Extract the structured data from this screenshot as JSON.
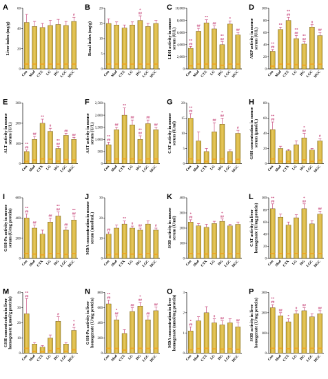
{
  "categories": [
    "Con",
    "Mod",
    "CTX",
    "LG",
    "HG",
    "LGC",
    "HGC"
  ],
  "colors": {
    "bar": "#c9a832",
    "bar_light": "#e8c95e",
    "error": "#c0306a",
    "stripe": "#f0a01e"
  },
  "chart_data": [
    {
      "type": "bar",
      "panel": "A",
      "ylabel": "Liver index (mg/g)",
      "ylim": [
        0,
        60
      ],
      "ticks": [
        0,
        20,
        40,
        60
      ],
      "values": [
        46,
        42,
        41,
        43,
        44,
        43,
        47
      ],
      "errors": [
        8,
        5,
        4,
        5,
        5,
        4,
        4
      ],
      "annotations": [
        "",
        "",
        "",
        "",
        "",
        "",
        "#"
      ]
    },
    {
      "type": "bar",
      "panel": "B",
      "ylabel": "Renal index (mg/g)",
      "ylim": [
        0,
        20
      ],
      "ticks": [
        0,
        5,
        10,
        15,
        20
      ],
      "values": [
        15,
        14.5,
        13.5,
        14.5,
        16,
        14,
        15
      ],
      "errors": [
        1.5,
        1,
        1,
        1,
        1.5,
        1,
        1
      ],
      "annotations": [
        "",
        "",
        "",
        "",
        "*\n##",
        "",
        ""
      ]
    },
    {
      "type": "bar",
      "panel": "C",
      "ylabel": "LDH activity in mouse serum (U/L)",
      "ylim": [
        0,
        10000
      ],
      "ticks": [
        0,
        2000,
        4000,
        6000,
        8000,
        10000
      ],
      "values": [
        3400,
        6200,
        7600,
        6600,
        4000,
        7400,
        5600
      ],
      "errors": [
        300,
        500,
        500,
        500,
        500,
        500,
        400
      ],
      "annotations": [
        "**\n##",
        "##",
        "**",
        "##",
        "**\n##",
        "*",
        "##"
      ]
    },
    {
      "type": "bar",
      "panel": "D",
      "ylabel": "AKP activity in mouse serum (U/L)",
      "ylim": [
        0,
        100
      ],
      "ticks": [
        0,
        20,
        40,
        60,
        80,
        100
      ],
      "values": [
        29,
        65,
        80,
        50,
        41,
        69,
        55
      ],
      "errors": [
        3,
        4,
        5,
        5,
        4,
        4,
        5
      ],
      "annotations": [
        "**\n##",
        "**",
        "**\n##",
        "**\n##",
        "**\n##",
        "#",
        "##"
      ]
    },
    {
      "type": "bar",
      "panel": "E",
      "ylabel": "ALT activity in mouse serum (U/L)",
      "ylim": [
        0,
        300
      ],
      "ticks": [
        0,
        100,
        200,
        300
      ],
      "values": [
        60,
        120,
        200,
        160,
        75,
        140,
        120
      ],
      "errors": [
        8,
        15,
        20,
        15,
        10,
        10,
        10
      ],
      "annotations": [
        "**\n##",
        "##",
        "**",
        "#",
        "**\n##",
        "##",
        "##"
      ]
    },
    {
      "type": "bar",
      "panel": "F",
      "ylabel": "AST activity in mouse serum (U/L)",
      "ylim": [
        0,
        2500
      ],
      "ticks": [
        0,
        500,
        1000,
        1500,
        2000,
        2500
      ],
      "values": [
        780,
        1400,
        2000,
        1600,
        1000,
        1650,
        1400
      ],
      "errors": [
        100,
        100,
        300,
        200,
        150,
        150,
        100
      ],
      "annotations": [
        "**\n##",
        "##",
        "**",
        "##",
        "**\n##",
        "##",
        "##"
      ]
    },
    {
      "type": "bar",
      "panel": "G",
      "ylabel": "CAT activity in mouse serum (U/ml)",
      "ylim": [
        0,
        20
      ],
      "ticks": [
        0,
        5,
        10,
        15,
        20
      ],
      "values": [
        15,
        7.5,
        4,
        10.5,
        13,
        4,
        10
      ],
      "errors": [
        1.5,
        3,
        1,
        3,
        2,
        0.5,
        1
      ],
      "annotations": [
        "**\n##",
        "",
        "",
        "##",
        "*\n##",
        "",
        "#"
      ]
    },
    {
      "type": "bar",
      "panel": "H",
      "ylabel": "GSH concentration in mouse serum (μmol/L)",
      "ylim": [
        0,
        80
      ],
      "ticks": [
        0,
        20,
        40,
        60,
        80
      ],
      "values": [
        45,
        20,
        17,
        25,
        34,
        18,
        30
      ],
      "errors": [
        10,
        3,
        2,
        5,
        6,
        2,
        3
      ],
      "annotations": [
        "**\n##",
        "",
        "",
        "",
        "*\n##",
        "",
        "#"
      ]
    },
    {
      "type": "bar",
      "panel": "I",
      "ylabel": "GSH-Px activity in mouse serum (U/mg protein)",
      "ylim": [
        0,
        600
      ],
      "ticks": [
        0,
        200,
        400,
        600
      ],
      "values": [
        400,
        300,
        240,
        360,
        420,
        280,
        380
      ],
      "errors": [
        40,
        30,
        40,
        40,
        40,
        30,
        40
      ],
      "annotations": [
        "**\n##",
        "##",
        "",
        "##",
        "**\n##",
        "##",
        "**\n##"
      ]
    },
    {
      "type": "bar",
      "panel": "J",
      "ylabel": "MDA concentration in mouse serum (nmol/mL)",
      "ylim": [
        0,
        30
      ],
      "ticks": [
        0,
        10,
        20,
        30
      ],
      "values": [
        12,
        15,
        17,
        15,
        14,
        17,
        14
      ],
      "errors": [
        1,
        1.5,
        1.5,
        1,
        1,
        1.5,
        1
      ],
      "annotations": [
        "##",
        "",
        "**",
        "#",
        "##",
        "",
        "#"
      ]
    },
    {
      "type": "bar",
      "panel": "K",
      "ylabel": "SOD activity in mouse serum (U/ml)",
      "ylim": [
        0,
        400
      ],
      "ticks": [
        0,
        100,
        200,
        300,
        400
      ],
      "values": [
        240,
        215,
        205,
        230,
        245,
        215,
        225
      ],
      "errors": [
        15,
        15,
        20,
        15,
        15,
        10,
        15
      ],
      "annotations": [
        "*\n##",
        "",
        "",
        "",
        "*\n##",
        "",
        ""
      ]
    },
    {
      "type": "bar",
      "panel": "L",
      "ylabel": "CAT activity in liver homogenate (U/mg protein)",
      "ylim": [
        0,
        100
      ],
      "ticks": [
        0,
        20,
        40,
        60,
        80,
        100
      ],
      "values": [
        82,
        68,
        55,
        67,
        82,
        57,
        73
      ],
      "errors": [
        8,
        5,
        5,
        5,
        8,
        5,
        5
      ],
      "annotations": [
        "**\n##",
        "",
        "",
        "",
        "*\n##",
        "",
        "##"
      ]
    },
    {
      "type": "bar",
      "panel": "M",
      "ylabel": "GSH concentration in liver homogenate (μmol/g protein)",
      "ylim": [
        0,
        40
      ],
      "ticks": [
        0,
        10,
        20,
        30,
        40
      ],
      "values": [
        26,
        6,
        4,
        10,
        21,
        6,
        15
      ],
      "errors": [
        10,
        1,
        1,
        2,
        3,
        1,
        2
      ],
      "annotations": [
        "**\n##",
        "",
        "",
        "",
        "#",
        "",
        "*\n#"
      ]
    },
    {
      "type": "bar",
      "panel": "N",
      "ylabel": "GSH-Px activity in liver homogenate (U/mg protein)",
      "ylim": [
        0,
        800
      ],
      "ticks": [
        0,
        200,
        400,
        600,
        800
      ],
      "values": [
        650,
        440,
        260,
        550,
        620,
        440,
        560
      ],
      "errors": [
        50,
        50,
        50,
        50,
        50,
        50,
        50
      ],
      "annotations": [
        "**\n##",
        "*\n##",
        "",
        "##",
        "*\n##",
        "##",
        "##"
      ]
    },
    {
      "type": "bar",
      "panel": "O",
      "ylabel": "MDA concentration in liver homogenate (nmol/mg protein)",
      "ylim": [
        0,
        3
      ],
      "ticks": [
        0,
        1,
        2,
        3
      ],
      "values": [
        1.1,
        1.6,
        2.0,
        1.5,
        1.4,
        1.5,
        1.3
      ],
      "errors": [
        0.2,
        0.2,
        0.3,
        0.2,
        0.2,
        0.2,
        0.2
      ],
      "annotations": [
        "*\n##",
        "",
        "",
        "#",
        "##",
        "",
        "##"
      ]
    },
    {
      "type": "bar",
      "panel": "P",
      "ylabel": "SOD activity in liver homogenate (U/mg protein)",
      "ylim": [
        0,
        300
      ],
      "ticks": [
        0,
        100,
        200,
        300
      ],
      "values": [
        225,
        185,
        155,
        195,
        210,
        180,
        195
      ],
      "errors": [
        15,
        15,
        15,
        15,
        15,
        15,
        15
      ],
      "annotations": [
        "**\n##",
        "##",
        "*",
        "#",
        "##",
        "",
        "##"
      ]
    }
  ]
}
